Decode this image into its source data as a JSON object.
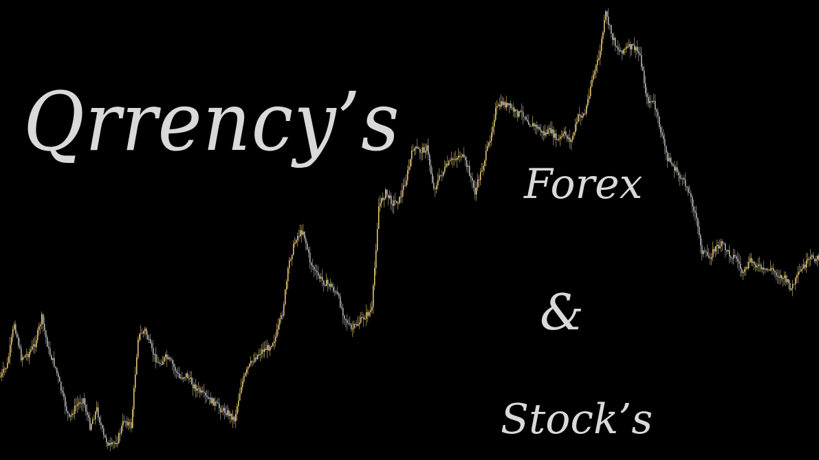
{
  "branding": {
    "title": "Qrrency’s",
    "forex": "Forex",
    "ampersand": "&",
    "stocks": "Stock’s"
  },
  "colors": {
    "background": "#000000",
    "text": "#d9d9d9",
    "up_candle": "#f2d07a",
    "down_candle": "#bdbdbd"
  },
  "chart_data": {
    "type": "line",
    "x": [
      0,
      10,
      20,
      30,
      40,
      50,
      60,
      70,
      80,
      90,
      100,
      110,
      120,
      130,
      140,
      150,
      160,
      170,
      180,
      190,
      200,
      210,
      220,
      230,
      240,
      250,
      260,
      270,
      280,
      290,
      300,
      310,
      320,
      330,
      340,
      350,
      360,
      370,
      380,
      390,
      400,
      410,
      420,
      430,
      440,
      450,
      460,
      470,
      480,
      490,
      500,
      510,
      520,
      530,
      540,
      550,
      560,
      570,
      580,
      590,
      600,
      610,
      620,
      630,
      640,
      650,
      660,
      670,
      680,
      690,
      700,
      710,
      720,
      730,
      740,
      750,
      760,
      770,
      780,
      790,
      800,
      810,
      820,
      830,
      840,
      850,
      860,
      870,
      880,
      890,
      900,
      910,
      920,
      930,
      940,
      950,
      960,
      970,
      980,
      990,
      1000,
      1010,
      1020,
      1030,
      1040,
      1050,
      1060,
      1070,
      1080,
      1090,
      1100,
      1110,
      1120,
      1130,
      1140,
      1150,
      1160,
      1170,
      1180,
      1190
    ],
    "y": [
      548,
      530,
      470,
      520,
      515,
      500,
      462,
      510,
      535,
      575,
      610,
      590,
      580,
      620,
      595,
      635,
      650,
      640,
      610,
      620,
      490,
      480,
      510,
      530,
      520,
      530,
      550,
      545,
      560,
      570,
      580,
      585,
      595,
      600,
      610,
      560,
      535,
      520,
      510,
      505,
      490,
      455,
      380,
      345,
      335,
      380,
      400,
      410,
      415,
      430,
      460,
      480,
      470,
      460,
      450,
      300,
      280,
      295,
      290,
      260,
      215,
      220,
      215,
      275,
      255,
      240,
      230,
      225,
      245,
      280,
      245,
      210,
      160,
      150,
      155,
      165,
      165,
      180,
      185,
      195,
      190,
      205,
      195,
      205,
      170,
      165,
      115,
      85,
      20,
      55,
      75,
      70,
      68,
      80,
      145,
      150,
      190,
      230,
      245,
      260,
      275,
      310,
      365,
      375,
      360,
      355,
      370,
      375,
      400,
      380,
      385,
      395,
      390,
      400,
      405,
      420,
      400,
      385,
      375,
      375
    ]
  }
}
